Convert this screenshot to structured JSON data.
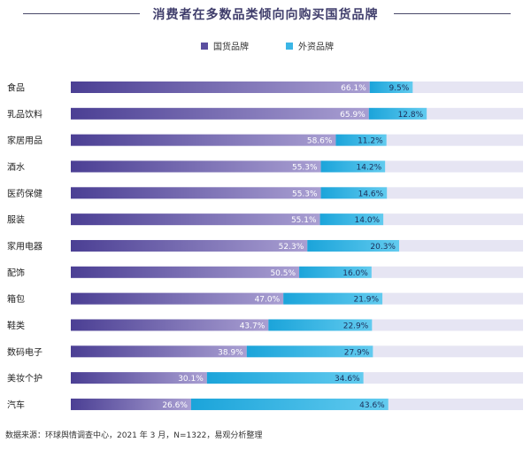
{
  "title": "消费者在多数品类倾向向购买国货品牌",
  "legend": {
    "domestic": "国货品牌",
    "foreign": "外资品牌"
  },
  "source": "数据来源：环球舆情调查中心，2021 年 3 月，N=1322，易观分析整理",
  "colors": {
    "domestic_start": "#4b3f94",
    "domestic_end": "#9f94cc",
    "foreign": "#1fa7dc",
    "foreign_light": "#5cc8ee",
    "remainder": "#e6e5f3",
    "title": "#3f3d6b"
  },
  "chart_data": {
    "type": "bar",
    "orientation": "horizontal",
    "stacked": true,
    "xlim": [
      0,
      100
    ],
    "categories": [
      "食品",
      "乳品饮料",
      "家居用品",
      "酒水",
      "医药保健",
      "服装",
      "家用电器",
      "配饰",
      "箱包",
      "鞋类",
      "数码电子",
      "美妆个护",
      "汽车"
    ],
    "series": [
      {
        "name": "国货品牌",
        "values": [
          66.1,
          65.9,
          58.6,
          55.3,
          55.3,
          55.1,
          52.3,
          50.5,
          47.0,
          43.7,
          38.9,
          30.1,
          26.6
        ],
        "labels": [
          "66.1%",
          "65.9%",
          "58.6%",
          "55.3%",
          "55.3%",
          "55.1%",
          "52.3%",
          "50.5%",
          "47.0%",
          "43.7%",
          "38.9%",
          "30.1%",
          "26.6%"
        ]
      },
      {
        "name": "外资品牌",
        "values": [
          9.5,
          12.8,
          11.2,
          14.2,
          14.6,
          14.0,
          20.3,
          16.0,
          21.9,
          22.9,
          27.9,
          34.6,
          43.6
        ],
        "labels": [
          "9.5%",
          "12.8%",
          "11.2%",
          "14.2%",
          "14.6%",
          "14.0%",
          "20.3%",
          "16.0%",
          "21.9%",
          "22.9%",
          "27.9%",
          "34.6%",
          "43.6%"
        ]
      }
    ]
  }
}
